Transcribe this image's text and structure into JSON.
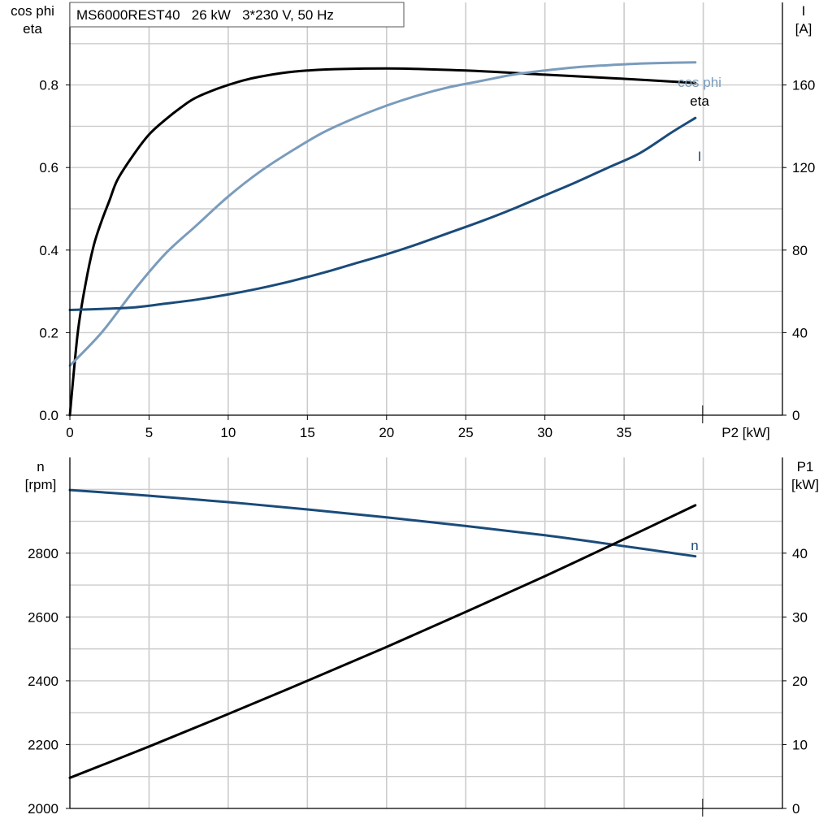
{
  "chart_data": [
    {
      "type": "line",
      "title": "MS6000REST40   26 kW   3*230 V, 50 Hz",
      "xlabel": "P2 [kW]",
      "ylabel_left_line1": "cos phi",
      "ylabel_left_line2": "eta",
      "ylabel_right_line1": "I",
      "ylabel_right_line2": "[A]",
      "xlim": [
        0,
        45
      ],
      "ylim_left": [
        0,
        1.0
      ],
      "ylim_right": [
        0,
        200
      ],
      "x_ticks": [
        "0",
        "5",
        "10",
        "15",
        "20",
        "25",
        "30",
        "35"
      ],
      "y_ticks_left": [
        "0.0",
        "0.2",
        "0.4",
        "0.6",
        "0.8"
      ],
      "y_ticks_right": [
        "0",
        "40",
        "80",
        "120",
        "160"
      ],
      "grid": true,
      "series": [
        {
          "name": "eta",
          "color": "#000000",
          "axis": "left",
          "x": [
            0,
            0.5,
            1,
            1.5,
            2,
            2.5,
            3,
            4,
            5,
            6,
            7,
            8,
            10,
            12,
            15,
            20,
            25,
            30,
            35,
            39.5
          ],
          "y": [
            0.0,
            0.2,
            0.32,
            0.41,
            0.47,
            0.52,
            0.57,
            0.63,
            0.68,
            0.715,
            0.745,
            0.77,
            0.8,
            0.82,
            0.835,
            0.84,
            0.835,
            0.825,
            0.815,
            0.805
          ]
        },
        {
          "name": "cos phi",
          "color": "#7a9cbc",
          "axis": "left",
          "x": [
            0,
            2,
            4,
            6,
            8,
            10,
            12,
            14,
            16,
            18,
            20,
            22,
            24,
            26,
            28,
            30,
            32,
            34,
            36,
            38,
            39.5
          ],
          "y": [
            0.12,
            0.2,
            0.3,
            0.39,
            0.46,
            0.53,
            0.59,
            0.64,
            0.685,
            0.72,
            0.75,
            0.775,
            0.795,
            0.81,
            0.825,
            0.835,
            0.843,
            0.848,
            0.852,
            0.854,
            0.855
          ]
        },
        {
          "name": "I",
          "color": "#1a4b7a",
          "axis": "right",
          "x": [
            0,
            2,
            4,
            6,
            8,
            10,
            12,
            14,
            16,
            18,
            20,
            22,
            24,
            26,
            28,
            30,
            32,
            34,
            36,
            38,
            39.5
          ],
          "y": [
            51,
            51.5,
            52.2,
            54,
            56,
            58.5,
            61.5,
            65,
            69,
            73.5,
            78,
            83,
            88.5,
            94,
            100,
            106.5,
            113,
            120,
            127,
            137,
            144
          ]
        }
      ]
    },
    {
      "type": "line",
      "ylabel_left_line1": "n",
      "ylabel_left_line2": "[rpm]",
      "ylabel_right_line1": "P1",
      "ylabel_right_line2": "[kW]",
      "xlim": [
        0,
        45
      ],
      "ylim_left": [
        2000,
        3100
      ],
      "ylim_right": [
        0,
        55
      ],
      "y_ticks_left": [
        "2000",
        "2200",
        "2400",
        "2600",
        "2800"
      ],
      "y_ticks_right": [
        "0",
        "10",
        "20",
        "30",
        "40"
      ],
      "grid": true,
      "series": [
        {
          "name": "n",
          "color": "#1a4b7a",
          "axis": "left",
          "x": [
            0,
            5,
            10,
            15,
            20,
            25,
            30,
            35,
            39.5
          ],
          "y": [
            2998,
            2980,
            2960,
            2937,
            2912,
            2885,
            2856,
            2822,
            2790
          ]
        },
        {
          "color": "#000000",
          "axis": "right",
          "x": [
            0,
            5,
            10,
            15,
            20,
            25,
            30,
            35,
            39.5
          ],
          "y": [
            4.8,
            9.7,
            14.8,
            20.0,
            25.3,
            30.8,
            36.4,
            42.2,
            47.5
          ]
        }
      ]
    }
  ]
}
